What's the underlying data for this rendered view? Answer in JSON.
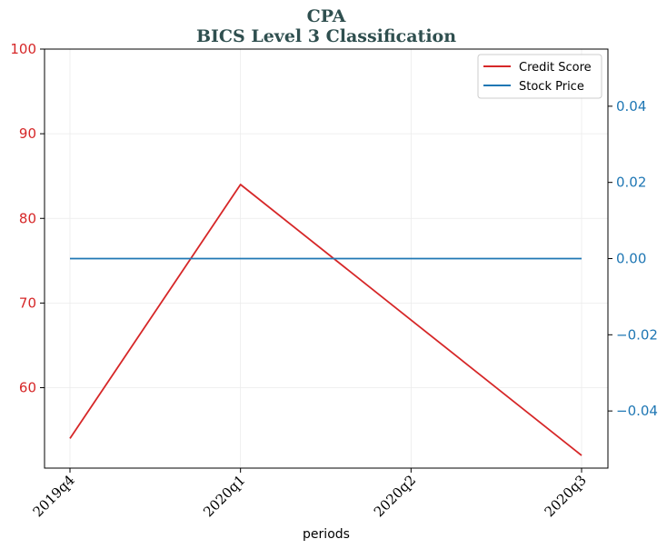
{
  "chart_data": {
    "type": "line",
    "title": "CPA",
    "subtitle": "BICS Level 3 Classification",
    "xlabel": "periods",
    "categories": [
      "2019q4",
      "2020q1",
      "2020q2",
      "2020q3"
    ],
    "series": [
      {
        "name": "Credit Score",
        "axis": "left",
        "color": "#d62728",
        "values": [
          54,
          84,
          68,
          52
        ]
      },
      {
        "name": "Stock Price",
        "axis": "right",
        "color": "#1f77b4",
        "values": [
          0.0,
          0.0,
          0.0,
          0.0
        ]
      }
    ],
    "y_left": {
      "lim": [
        50.5,
        100
      ],
      "ticks": [
        60,
        70,
        80,
        90,
        100
      ],
      "tick_labels": [
        "60",
        "70",
        "80",
        "90",
        "100"
      ],
      "color": "#d62728"
    },
    "y_right": {
      "lim": [
        -0.055,
        0.055
      ],
      "ticks": [
        -0.04,
        -0.02,
        0.0,
        0.02,
        0.04
      ],
      "tick_labels": [
        "−0.04",
        "−0.02",
        "0.00",
        "0.02",
        "0.04"
      ],
      "color": "#1f77b4"
    },
    "grid": true,
    "legend": "top-right"
  }
}
